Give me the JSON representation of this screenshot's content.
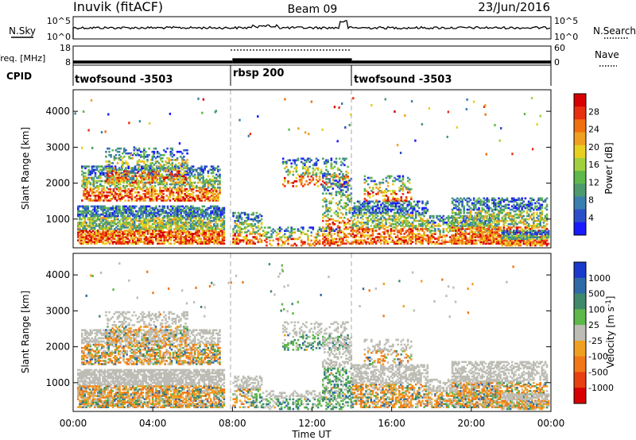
{
  "header": {
    "station": "Inuvik (fitACF)",
    "beam": "Beam 09",
    "date": "23/Jun/2016"
  },
  "chart_data": [
    {
      "type": "line",
      "name": "sky-noise-panel",
      "ylabel": "N.Sky",
      "right_label": "N.Search",
      "ytick_labels": [
        "10^5",
        "10^0"
      ],
      "right_tick_labels": [
        "10^5",
        "10^0"
      ],
      "x_tick_labels": [
        "00:00",
        "04:00",
        "08:00",
        "12:00",
        "16:00",
        "20:00",
        "00:00"
      ]
    },
    {
      "type": "line",
      "name": "frequency-panel",
      "ylabel": "Freq. [MHz]",
      "right_label": "Nave",
      "ytick_labels": [
        "18",
        "8"
      ],
      "right_tick_labels": [
        "60",
        "0"
      ],
      "segments": [
        {
          "start_hour": 0,
          "end_hour": 8.0,
          "freq_mhz": 10.4
        },
        {
          "start_hour": 8.0,
          "end_hour": 14.0,
          "freq_mhz": 11.6
        },
        {
          "start_hour": 14.0,
          "end_hour": 24.0,
          "freq_mhz": 10.4
        }
      ]
    },
    {
      "type": "table",
      "name": "cpid-panel",
      "label": "CPID",
      "programs": [
        {
          "label": "twofsound -3503",
          "start_hour": 0,
          "end_hour": 8.0
        },
        {
          "label": "rbsp 200",
          "start_hour": 8.0,
          "end_hour": 14.0
        },
        {
          "label": "twofsound -3503",
          "start_hour": 14.0,
          "end_hour": 24.0
        }
      ]
    },
    {
      "type": "heatmap",
      "name": "power-panel",
      "ylabel": "Slant Range [km]",
      "ylim": [
        200,
        4600
      ],
      "y_ticks": [
        1000,
        2000,
        3000,
        4000
      ],
      "xlim": [
        0,
        24
      ],
      "colorbar_label": "Power [dB]",
      "colorbar_ticks": [
        4,
        8,
        12,
        16,
        20,
        24,
        28
      ],
      "colorbar_range": [
        0,
        30
      ],
      "colors": [
        "#1a1aff",
        "#2b4fc8",
        "#3a7fb0",
        "#4c9a6e",
        "#5fb84a",
        "#a0d040",
        "#e8d020",
        "#f0a020",
        "#f07010",
        "#e83010",
        "#d80000"
      ]
    },
    {
      "type": "heatmap",
      "name": "velocity-panel",
      "ylabel": "Slant Range [km]",
      "ylim": [
        200,
        4600
      ],
      "y_ticks": [
        1000,
        2000,
        3000,
        4000
      ],
      "xlim": [
        0,
        24
      ],
      "xlabel": "Time UT",
      "x_tick_labels": [
        "00:00",
        "04:00",
        "08:00",
        "12:00",
        "16:00",
        "20:00",
        "00:00"
      ],
      "colorbar_label": "Velocity [m s-1]",
      "colorbar_ticks": [
        "1000",
        "500",
        "100",
        "25",
        "-25",
        "-100",
        "-500",
        "-1000"
      ],
      "colors": [
        "#1a3acc",
        "#2f6aa8",
        "#3f8a6a",
        "#5fb84a",
        "#bdbdb5",
        "#f0a020",
        "#f07818",
        "#e84010",
        "#d80000"
      ]
    }
  ]
}
